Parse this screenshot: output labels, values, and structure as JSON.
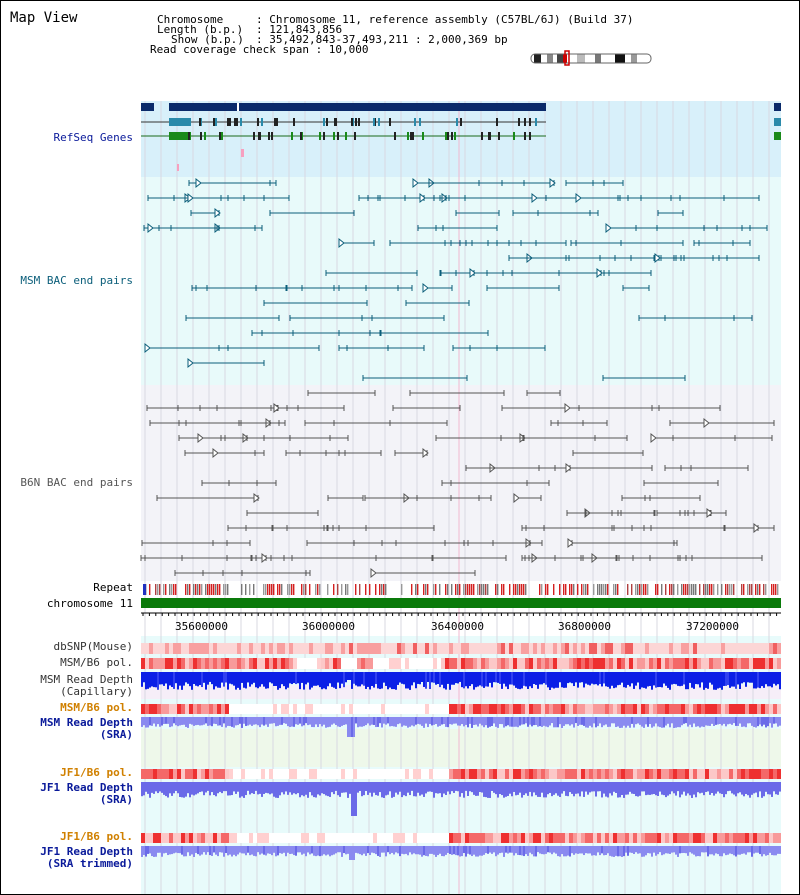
{
  "title": "Map View",
  "header": {
    "chromosome_key": "Chromosome",
    "chromosome_val": ": Chromosome 11, reference assembly (C57BL/6J) (Build 37)",
    "length_key": "Length (b.p.)",
    "length_val": ": 121,843,856",
    "show_key": "Show (b.p.)",
    "show_val": ": 35,492,843-37,493,211 : 2,000,369 bp",
    "coverage": "Read coverage check span : 10,000"
  },
  "tracks": {
    "refseq": "RefSeq Genes",
    "msm_bac": "MSM BAC end pairs",
    "b6n_bac": "B6N BAC end pairs",
    "repeat": "Repeat",
    "chromosome": "chromosome 11",
    "dbsnp": "dbSNP(Mouse)",
    "msm_b6_pol": "MSM/B6 pol.",
    "msm_depth_cap_1": "MSM Read Depth",
    "msm_depth_cap_2": "(Capillary)",
    "msm_b6_pol_2": "MSM/B6 pol.",
    "msm_depth_sra_1": "MSM Read Depth",
    "msm_depth_sra_2": "(SRA)",
    "jf1_b6_pol": "JF1/B6 pol.",
    "jf1_depth_sra_1": "JF1 Read Depth",
    "jf1_depth_sra_2": "(SRA)",
    "jf1_b6_pol_2": "JF1/B6 pol.",
    "jf1_depth_trim_1": "JF1 Read Depth",
    "jf1_depth_trim_2": "(SRA trimmed)"
  },
  "axis_ticks": [
    "35600000",
    "36000000",
    "36400000",
    "36800000",
    "37200000"
  ],
  "colors": {
    "refseq_bg": "#d8f0fa",
    "bac_bg": "#e8fafa",
    "b6n_bg": "#f3f3f8",
    "chromosome": "#0a7a0a",
    "depth_blue": "#0b1fe6",
    "depth_light": "#8a8af0",
    "pol_red": "#ee3333"
  }
}
